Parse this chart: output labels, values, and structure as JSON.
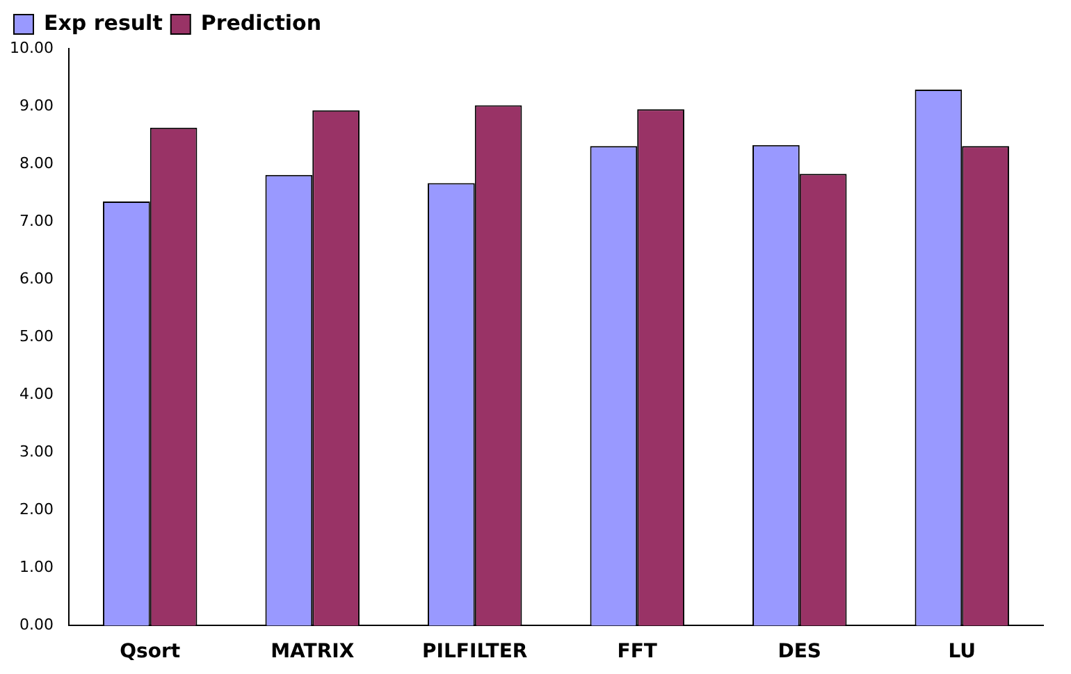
{
  "chart_data": {
    "type": "bar",
    "categories": [
      "Qsort",
      "MATRIX",
      "PILFILTER",
      "FFT",
      "DES",
      "LU"
    ],
    "series": [
      {
        "name": "Exp result",
        "color": "#9999ff",
        "values": [
          7.35,
          7.81,
          7.67,
          8.31,
          8.33,
          9.29
        ]
      },
      {
        "name": "Prediction",
        "color": "#993366",
        "values": [
          8.63,
          8.93,
          9.02,
          8.95,
          7.83,
          8.31
        ]
      }
    ],
    "ylim": [
      0,
      10
    ],
    "yticks": [
      {
        "value": 0,
        "label": "0.00"
      },
      {
        "value": 1,
        "label": "1.00"
      },
      {
        "value": 2,
        "label": "2.00"
      },
      {
        "value": 3,
        "label": "3.00"
      },
      {
        "value": 4,
        "label": "4.00"
      },
      {
        "value": 5,
        "label": "5.00"
      },
      {
        "value": 6,
        "label": "6.00"
      },
      {
        "value": 7,
        "label": "7.00"
      },
      {
        "value": 8,
        "label": "8.00"
      },
      {
        "value": 9,
        "label": "9.00"
      },
      {
        "value": 10,
        "label": "10.00"
      }
    ],
    "grid": false,
    "legend": "top left"
  }
}
